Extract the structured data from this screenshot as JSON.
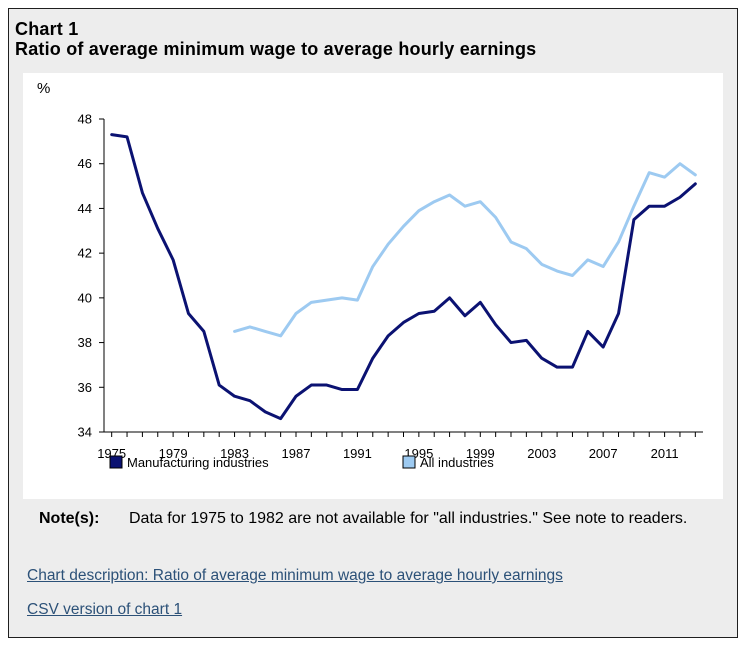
{
  "header": {
    "chart_label": "Chart 1",
    "title": "Ratio of average minimum wage to average hourly earnings"
  },
  "note": {
    "label": "Note(s):",
    "text": "Data for 1975 to 1982 are not available for \"all industries.\" See note to readers."
  },
  "links": {
    "description": "Chart description: Ratio of average minimum wage to average hourly earnings",
    "csv": "CSV version of chart 1"
  },
  "colors": {
    "manufacturing": "#0b1272",
    "all_industries": "#9dcaf1",
    "axis": "#000000"
  },
  "chart_data": {
    "type": "line",
    "title": "Ratio of average minimum wage to average hourly earnings",
    "xlabel": "",
    "ylabel": "%",
    "xlim": [
      1975,
      2013
    ],
    "ylim": [
      34,
      48
    ],
    "grid": false,
    "legend_position": "bottom",
    "x_ticks": [
      1975,
      1979,
      1983,
      1987,
      1991,
      1995,
      1999,
      2003,
      2007,
      2011
    ],
    "y_ticks": [
      34,
      36,
      38,
      40,
      42,
      44,
      46,
      48
    ],
    "series": [
      {
        "name": "Manufacturing industries",
        "x": [
          1975,
          1976,
          1977,
          1978,
          1979,
          1980,
          1981,
          1982,
          1983,
          1984,
          1985,
          1986,
          1987,
          1988,
          1989,
          1990,
          1991,
          1992,
          1993,
          1994,
          1995,
          1996,
          1997,
          1998,
          1999,
          2000,
          2001,
          2002,
          2003,
          2004,
          2005,
          2006,
          2007,
          2008,
          2009,
          2010,
          2011,
          2012,
          2013
        ],
        "values": [
          47.3,
          47.2,
          44.7,
          43.1,
          41.7,
          39.3,
          38.5,
          36.1,
          35.6,
          35.4,
          34.9,
          34.6,
          35.6,
          36.1,
          36.1,
          35.9,
          35.9,
          37.3,
          38.3,
          38.9,
          39.3,
          39.4,
          40.0,
          39.2,
          39.8,
          38.8,
          38.0,
          38.1,
          37.3,
          36.9,
          36.9,
          38.5,
          37.8,
          39.3,
          43.5,
          44.1,
          44.1,
          44.5,
          45.1
        ]
      },
      {
        "name": "All industries",
        "x": [
          1983,
          1984,
          1985,
          1986,
          1987,
          1988,
          1989,
          1990,
          1991,
          1992,
          1993,
          1994,
          1995,
          1996,
          1997,
          1998,
          1999,
          2000,
          2001,
          2002,
          2003,
          2004,
          2005,
          2006,
          2007,
          2008,
          2009,
          2010,
          2011,
          2012,
          2013
        ],
        "values": [
          38.5,
          38.7,
          38.5,
          38.3,
          39.3,
          39.8,
          39.9,
          40.0,
          39.9,
          41.4,
          42.4,
          43.2,
          43.9,
          44.3,
          44.6,
          44.1,
          44.3,
          43.6,
          42.5,
          42.2,
          41.5,
          41.2,
          41.0,
          41.7,
          41.4,
          42.5,
          44.1,
          45.6,
          45.4,
          46.0,
          45.5
        ]
      }
    ]
  }
}
